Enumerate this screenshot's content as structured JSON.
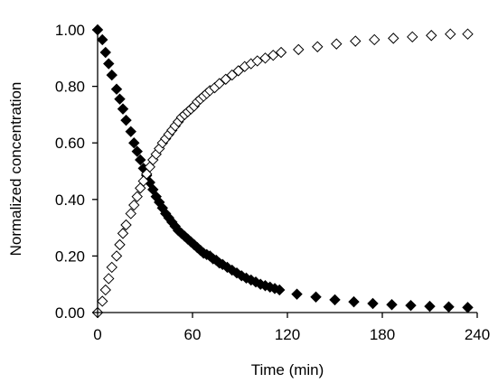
{
  "chart_data": {
    "type": "scatter",
    "title": "",
    "xlabel": "Time (min)",
    "ylabel": "Normalized concentration",
    "xlim": [
      0,
      240
    ],
    "ylim": [
      0,
      1
    ],
    "x_ticks": [
      "0",
      "60",
      "120",
      "180",
      "240"
    ],
    "y_ticks": [
      "0.00",
      "0.20",
      "0.40",
      "0.60",
      "0.80",
      "1.00"
    ],
    "grid": false,
    "legend": "none",
    "colors": {
      "filled": "#000000",
      "open": "#000000"
    },
    "series": [
      {
        "marker": "filled-diamond",
        "x": [
          0,
          3,
          5,
          7,
          9,
          12,
          14,
          16,
          18,
          21,
          23,
          25,
          27,
          29,
          31,
          33,
          35,
          37,
          39,
          41,
          43,
          45,
          47,
          49,
          51,
          53,
          55,
          57,
          59,
          61,
          63,
          65,
          67,
          69,
          71,
          73,
          75,
          77,
          79,
          82,
          85,
          88,
          91,
          94,
          97,
          100,
          103,
          106,
          109,
          112,
          115,
          126,
          138,
          150,
          162,
          174,
          186,
          198,
          210,
          222,
          234
        ],
        "y": [
          1.0,
          0.965,
          0.92,
          0.88,
          0.84,
          0.79,
          0.755,
          0.72,
          0.68,
          0.64,
          0.6,
          0.57,
          0.54,
          0.51,
          0.485,
          0.46,
          0.435,
          0.41,
          0.39,
          0.37,
          0.35,
          0.335,
          0.32,
          0.305,
          0.29,
          0.28,
          0.27,
          0.26,
          0.25,
          0.24,
          0.23,
          0.22,
          0.21,
          0.205,
          0.2,
          0.19,
          0.185,
          0.175,
          0.17,
          0.16,
          0.15,
          0.14,
          0.13,
          0.122,
          0.115,
          0.108,
          0.1,
          0.095,
          0.09,
          0.085,
          0.08,
          0.065,
          0.055,
          0.045,
          0.038,
          0.032,
          0.028,
          0.025,
          0.022,
          0.02,
          0.018
        ]
      },
      {
        "marker": "open-diamond",
        "x": [
          0,
          3,
          5,
          7,
          9,
          12,
          14,
          16,
          18,
          21,
          23,
          25,
          27,
          29,
          31,
          33,
          35,
          37,
          39,
          41,
          43,
          45,
          47,
          49,
          51,
          53,
          55,
          57,
          59,
          61,
          63,
          65,
          67,
          69,
          71,
          74,
          77,
          81,
          85,
          89,
          93,
          97,
          101,
          106,
          111,
          116,
          127,
          139,
          151,
          163,
          175,
          187,
          199,
          211,
          223,
          234
        ],
        "y": [
          0.0,
          0.04,
          0.08,
          0.12,
          0.16,
          0.2,
          0.24,
          0.28,
          0.31,
          0.35,
          0.38,
          0.41,
          0.44,
          0.465,
          0.49,
          0.515,
          0.54,
          0.56,
          0.58,
          0.6,
          0.615,
          0.63,
          0.645,
          0.66,
          0.675,
          0.69,
          0.7,
          0.71,
          0.72,
          0.73,
          0.745,
          0.755,
          0.765,
          0.775,
          0.785,
          0.795,
          0.81,
          0.825,
          0.84,
          0.855,
          0.87,
          0.88,
          0.89,
          0.9,
          0.91,
          0.92,
          0.93,
          0.94,
          0.95,
          0.96,
          0.965,
          0.97,
          0.975,
          0.98,
          0.985,
          0.985
        ]
      }
    ]
  }
}
